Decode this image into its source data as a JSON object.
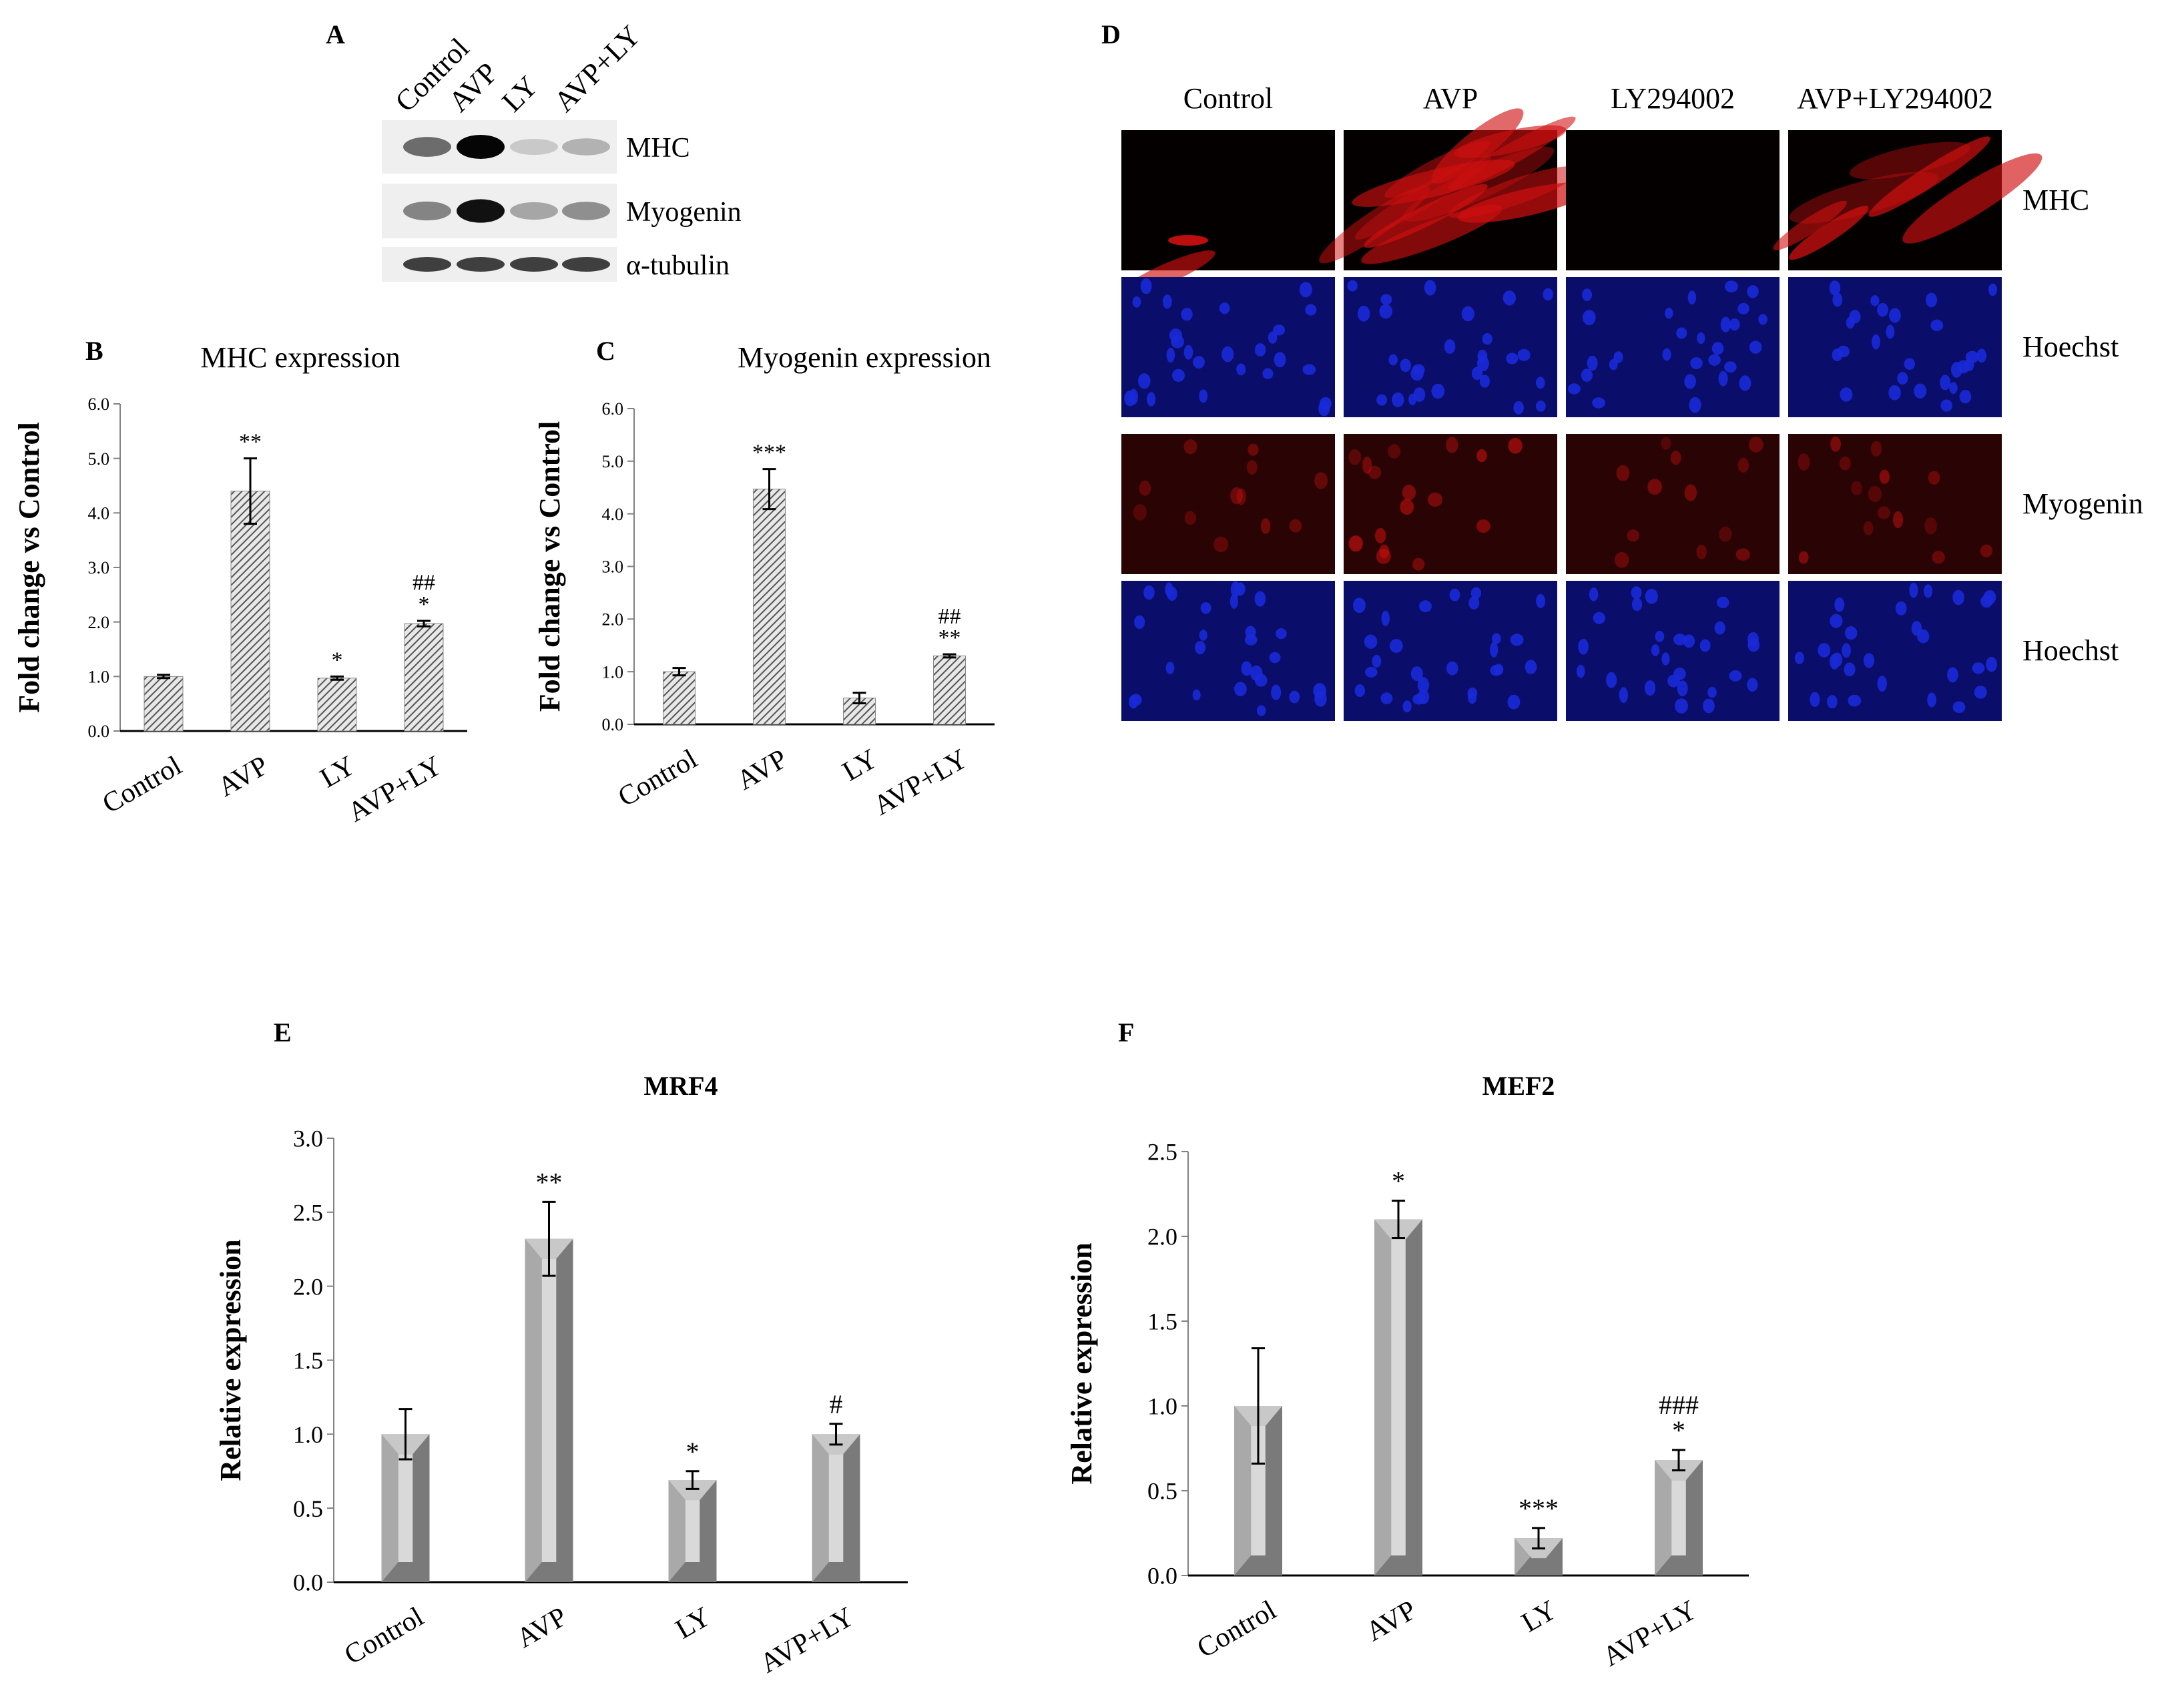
{
  "panel_labels": {
    "a": "A",
    "b": "B",
    "c": "C",
    "d": "D",
    "e": "E",
    "f": "F"
  },
  "western_blot": {
    "lanes": [
      "Control",
      "AVP",
      "LY",
      "AVP+LY"
    ],
    "rows": [
      {
        "label": "MHC",
        "intensity": [
          0.55,
          1.0,
          0.15,
          0.25
        ]
      },
      {
        "label": "Myogenin",
        "intensity": [
          0.45,
          0.95,
          0.3,
          0.4
        ]
      },
      {
        "label": "α-tubulin",
        "intensity": [
          0.75,
          0.75,
          0.75,
          0.75
        ]
      }
    ]
  },
  "microscopy": {
    "columns": [
      "Control",
      "AVP",
      "LY294002",
      "AVP+LY294002"
    ],
    "rows": [
      {
        "label": "MHC",
        "stain": "red",
        "signal": [
          0.1,
          0.85,
          0.0,
          0.4
        ]
      },
      {
        "label": "Hoechst",
        "stain": "blue",
        "signal": [
          0.7,
          0.7,
          0.7,
          0.7
        ]
      },
      {
        "label": "Myogenin",
        "stain": "red",
        "signal": [
          0.25,
          0.55,
          0.3,
          0.5
        ]
      },
      {
        "label": "Hoechst",
        "stain": "blue",
        "signal": [
          0.7,
          0.7,
          0.7,
          0.7
        ]
      }
    ],
    "colors": {
      "red": "#d01010",
      "blue": "#1a2ad8",
      "blue_bg": "#0a0e6a",
      "red_bg": "#2a0404"
    }
  },
  "chart_data": [
    {
      "id": "B",
      "type": "bar",
      "title": "MHC expression",
      "xlabel": "",
      "ylabel": "Fold change vs Control",
      "categories": [
        "Control",
        "AVP",
        "LY",
        "AVP+LY"
      ],
      "values": [
        1.0,
        4.4,
        0.97,
        1.97
      ],
      "errors": [
        0.03,
        0.6,
        0.03,
        0.05
      ],
      "annotations": [
        "",
        "**",
        "*",
        "##\n*"
      ],
      "ylim": [
        0,
        6
      ],
      "yticks": [
        "0.0",
        "1.0",
        "2.0",
        "3.0",
        "4.0",
        "5.0",
        "6.0"
      ],
      "style": "hatched",
      "grid": false
    },
    {
      "id": "C",
      "type": "bar",
      "title": "Myogenin expression",
      "xlabel": "",
      "ylabel": "Fold change vs Control",
      "categories": [
        "Control",
        "AVP",
        "LY",
        "AVP+LY"
      ],
      "values": [
        1.0,
        4.47,
        0.5,
        1.3
      ],
      "errors": [
        0.07,
        0.38,
        0.1,
        0.03
      ],
      "annotations": [
        "",
        "***",
        "",
        "##\n**"
      ],
      "ylim": [
        0,
        6
      ],
      "yticks": [
        "0.0",
        "1.0",
        "2.0",
        "3.0",
        "4.0",
        "5.0",
        "6.0"
      ],
      "style": "hatched",
      "grid": false
    },
    {
      "id": "E",
      "type": "bar",
      "title": "MRF4",
      "xlabel": "",
      "ylabel": "Relative expression",
      "categories": [
        "Control",
        "AVP",
        "LY",
        "AVP+LY"
      ],
      "values": [
        1.0,
        2.32,
        0.69,
        1.0
      ],
      "errors": [
        0.17,
        0.25,
        0.06,
        0.07
      ],
      "annotations": [
        "",
        "**",
        "*",
        "#"
      ],
      "ylim": [
        0,
        3
      ],
      "yticks": [
        "0.0",
        "0.5",
        "1.0",
        "1.5",
        "2.0",
        "2.5",
        "3.0"
      ],
      "style": "bevel",
      "grid": false
    },
    {
      "id": "F",
      "type": "bar",
      "title": "MEF2",
      "xlabel": "",
      "ylabel": "Relative expression",
      "categories": [
        "Control",
        "AVP",
        "LY",
        "AVP+LY"
      ],
      "values": [
        1.0,
        2.1,
        0.22,
        0.68
      ],
      "errors": [
        0.34,
        0.11,
        0.06,
        0.06
      ],
      "annotations": [
        "",
        "*",
        "***",
        "###\n*"
      ],
      "ylim": [
        0,
        2.5
      ],
      "yticks": [
        "0.0",
        "0.5",
        "1.0",
        "1.5",
        "2.0",
        "2.5"
      ],
      "style": "bevel",
      "grid": false
    }
  ]
}
